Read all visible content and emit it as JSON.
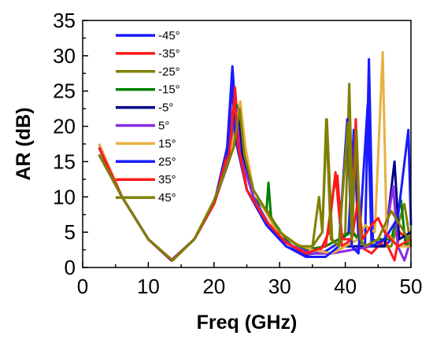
{
  "chart_data": {
    "type": "line",
    "title": "",
    "xlabel": "Freq (GHz)",
    "ylabel": "AR (dB)",
    "xlim": [
      0,
      50
    ],
    "ylim": [
      0,
      35
    ],
    "x_ticks": [
      "0",
      "10",
      "20",
      "30",
      "40",
      "50"
    ],
    "y_ticks": [
      "0",
      "5",
      "10",
      "15",
      "20",
      "25",
      "30",
      "35"
    ],
    "grid": false,
    "legend_position": "top-left",
    "series": [
      {
        "name": "-45°",
        "color": "#1a1aff",
        "points": [
          [
            2.5,
            17.5
          ],
          [
            6,
            10
          ],
          [
            10,
            4
          ],
          [
            13.5,
            1
          ],
          [
            17,
            4
          ],
          [
            20,
            9
          ],
          [
            22,
            17
          ],
          [
            22.8,
            28.5
          ],
          [
            23.5,
            19
          ],
          [
            25,
            11
          ],
          [
            28,
            6
          ],
          [
            31,
            3
          ],
          [
            34,
            1.8
          ],
          [
            37,
            2.3
          ],
          [
            39,
            3.5
          ],
          [
            40.5,
            5
          ],
          [
            41.3,
            19.5
          ],
          [
            42,
            4
          ],
          [
            43,
            3
          ],
          [
            43.6,
            29.5
          ],
          [
            44.2,
            4
          ],
          [
            46,
            3
          ],
          [
            48,
            5
          ],
          [
            50,
            4
          ]
        ]
      },
      {
        "name": "-35°",
        "color": "#ff1a1a",
        "points": [
          [
            2.5,
            17
          ],
          [
            6,
            10
          ],
          [
            10,
            4
          ],
          [
            13.6,
            1
          ],
          [
            17,
            4
          ],
          [
            20,
            9
          ],
          [
            22.3,
            17
          ],
          [
            23.2,
            25.5
          ],
          [
            23.8,
            18
          ],
          [
            25,
            11
          ],
          [
            28,
            6.5
          ],
          [
            31,
            3.5
          ],
          [
            34,
            2
          ],
          [
            36,
            2
          ],
          [
            37.5,
            5
          ],
          [
            38.5,
            13.5
          ],
          [
            39.5,
            3
          ],
          [
            41,
            4
          ],
          [
            41.6,
            21
          ],
          [
            42.2,
            3
          ],
          [
            44,
            2
          ],
          [
            46,
            4
          ],
          [
            47.5,
            1
          ],
          [
            48.3,
            5
          ],
          [
            50,
            3.5
          ]
        ]
      },
      {
        "name": "-25°",
        "color": "#808000",
        "points": [
          [
            2.5,
            16
          ],
          [
            6,
            10
          ],
          [
            10,
            4
          ],
          [
            13.7,
            1
          ],
          [
            17,
            4
          ],
          [
            20,
            9.5
          ],
          [
            23,
            17
          ],
          [
            24,
            23.5
          ],
          [
            24.7,
            17
          ],
          [
            26,
            11
          ],
          [
            28,
            8
          ],
          [
            28.2,
            8
          ],
          [
            30,
            5
          ],
          [
            33,
            3
          ],
          [
            35,
            3
          ],
          [
            36.5,
            5
          ],
          [
            37.2,
            21
          ],
          [
            38,
            4
          ],
          [
            39,
            3
          ],
          [
            40,
            5
          ],
          [
            40.6,
            26
          ],
          [
            41.2,
            5
          ],
          [
            43,
            3
          ],
          [
            45,
            3
          ],
          [
            47,
            3
          ],
          [
            49,
            9
          ],
          [
            50,
            3
          ]
        ]
      },
      {
        "name": "-15°",
        "color": "#008000",
        "points": [
          [
            2.5,
            16
          ],
          [
            6,
            10
          ],
          [
            10,
            4
          ],
          [
            13.6,
            1
          ],
          [
            17,
            4
          ],
          [
            20,
            9
          ],
          [
            22.5,
            16
          ],
          [
            23.5,
            23
          ],
          [
            24.2,
            16
          ],
          [
            26,
            10
          ],
          [
            28,
            8
          ],
          [
            28.3,
            12
          ],
          [
            28.7,
            7
          ],
          [
            31,
            4
          ],
          [
            34,
            2.5
          ],
          [
            37,
            3
          ],
          [
            39,
            4
          ],
          [
            41,
            5
          ],
          [
            43,
            3
          ],
          [
            45,
            4
          ],
          [
            47,
            4
          ],
          [
            48.5,
            9.5
          ],
          [
            49.2,
            3
          ],
          [
            50,
            4
          ]
        ]
      },
      {
        "name": "-5°",
        "color": "#00008b",
        "points": [
          [
            2.5,
            16
          ],
          [
            6,
            10
          ],
          [
            10,
            4
          ],
          [
            13.6,
            1
          ],
          [
            17,
            4
          ],
          [
            20,
            9
          ],
          [
            22.6,
            16
          ],
          [
            23.6,
            22.5
          ],
          [
            24.3,
            16
          ],
          [
            26,
            10
          ],
          [
            29,
            5
          ],
          [
            32,
            3
          ],
          [
            35,
            2
          ],
          [
            38,
            2
          ],
          [
            40,
            3
          ],
          [
            42,
            3
          ],
          [
            44,
            3
          ],
          [
            46,
            3
          ],
          [
            47.5,
            15
          ],
          [
            48.2,
            4
          ],
          [
            50,
            5
          ]
        ]
      },
      {
        "name": "5°",
        "color": "#8a2be2",
        "points": [
          [
            2.5,
            16
          ],
          [
            6,
            10
          ],
          [
            10,
            4
          ],
          [
            13.5,
            1
          ],
          [
            17,
            4
          ],
          [
            20,
            9
          ],
          [
            22.5,
            16
          ],
          [
            23.4,
            22.5
          ],
          [
            24,
            16
          ],
          [
            26,
            10
          ],
          [
            29,
            5
          ],
          [
            32,
            3
          ],
          [
            35,
            2
          ],
          [
            38,
            2
          ],
          [
            41,
            2.5
          ],
          [
            44,
            3
          ],
          [
            46,
            4
          ],
          [
            47.3,
            11.5
          ],
          [
            48,
            3
          ],
          [
            49,
            1
          ],
          [
            50,
            4
          ]
        ]
      },
      {
        "name": "15°",
        "color": "#e8b040",
        "points": [
          [
            2.5,
            17.5
          ],
          [
            6,
            10
          ],
          [
            10,
            4
          ],
          [
            13.5,
            1
          ],
          [
            17,
            4
          ],
          [
            20,
            9
          ],
          [
            22.5,
            16
          ],
          [
            24,
            23.5
          ],
          [
            24.8,
            17
          ],
          [
            26,
            11
          ],
          [
            29,
            6
          ],
          [
            32,
            3.5
          ],
          [
            35,
            2.5
          ],
          [
            38,
            2
          ],
          [
            40,
            3
          ],
          [
            42,
            4
          ],
          [
            43,
            6
          ],
          [
            44.5,
            5
          ],
          [
            45.7,
            30.5
          ],
          [
            46.3,
            5
          ],
          [
            48,
            3
          ],
          [
            50,
            3
          ]
        ]
      },
      {
        "name": "25°",
        "color": "#1a1aff",
        "points": [
          [
            2.5,
            17
          ],
          [
            6,
            10
          ],
          [
            10,
            4
          ],
          [
            13.5,
            1
          ],
          [
            17,
            4
          ],
          [
            20,
            9
          ],
          [
            22,
            15
          ],
          [
            22.7,
            26
          ],
          [
            23.3,
            18
          ],
          [
            25,
            11
          ],
          [
            28,
            6
          ],
          [
            31,
            3
          ],
          [
            34,
            1.5
          ],
          [
            37,
            1.5
          ],
          [
            39,
            3
          ],
          [
            40.3,
            21
          ],
          [
            41,
            3
          ],
          [
            42,
            2
          ],
          [
            43.4,
            23
          ],
          [
            44,
            3
          ],
          [
            46,
            4
          ],
          [
            48,
            7
          ],
          [
            49.6,
            19.5
          ],
          [
            50,
            6
          ]
        ]
      },
      {
        "name": "35°",
        "color": "#ff1a1a",
        "points": [
          [
            2.5,
            17
          ],
          [
            6,
            10
          ],
          [
            10,
            4
          ],
          [
            13.6,
            1
          ],
          [
            17,
            4
          ],
          [
            20,
            9
          ],
          [
            22.3,
            16
          ],
          [
            23.1,
            24
          ],
          [
            23.7,
            17
          ],
          [
            25,
            11
          ],
          [
            28,
            6.5
          ],
          [
            31,
            3.5
          ],
          [
            34,
            2
          ],
          [
            37,
            3
          ],
          [
            38.2,
            11
          ],
          [
            38.8,
            13
          ],
          [
            39.5,
            4
          ],
          [
            41,
            4
          ],
          [
            42,
            10
          ],
          [
            42.6,
            4
          ],
          [
            44,
            6
          ],
          [
            45,
            7
          ],
          [
            46,
            5
          ],
          [
            48,
            3
          ],
          [
            50,
            4
          ]
        ]
      },
      {
        "name": "45°",
        "color": "#808000",
        "points": [
          [
            2.5,
            16
          ],
          [
            6,
            10
          ],
          [
            10,
            4
          ],
          [
            13.7,
            1
          ],
          [
            17,
            4
          ],
          [
            20,
            9.5
          ],
          [
            23,
            17
          ],
          [
            23.9,
            22.5
          ],
          [
            24.6,
            16
          ],
          [
            26,
            11
          ],
          [
            28,
            8
          ],
          [
            30,
            5
          ],
          [
            33,
            3
          ],
          [
            35,
            3
          ],
          [
            36,
            10
          ],
          [
            36.5,
            5
          ],
          [
            37.1,
            21
          ],
          [
            37.8,
            4
          ],
          [
            39,
            3
          ],
          [
            40.4,
            20.5
          ],
          [
            41,
            4
          ],
          [
            41.7,
            19.5
          ],
          [
            42.3,
            4
          ],
          [
            43,
            3
          ],
          [
            45,
            4
          ],
          [
            47,
            8
          ],
          [
            49,
            5
          ],
          [
            50,
            3
          ]
        ]
      }
    ]
  }
}
